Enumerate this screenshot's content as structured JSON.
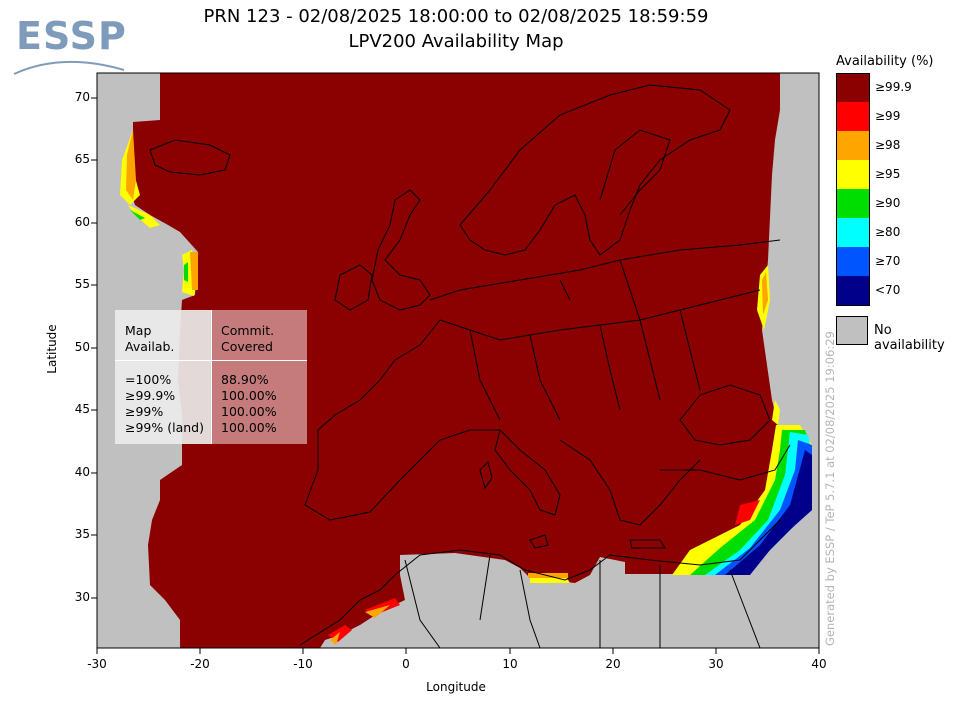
{
  "logo": {
    "text": "ESSP"
  },
  "title": {
    "line1": "PRN 123 - 02/08/2025 18:00:00 to 02/08/2025 18:59:59",
    "line2": "LPV200 Availability Map"
  },
  "axes": {
    "xlabel": "Longitude",
    "ylabel": "Latitude",
    "xticks": [
      "-30",
      "-20",
      "-10",
      "0",
      "10",
      "20",
      "30",
      "40"
    ],
    "yticks": [
      "70",
      "65",
      "60",
      "55",
      "50",
      "45",
      "40",
      "35",
      "30"
    ],
    "xlim": [
      -30,
      40
    ],
    "ylim": [
      26,
      72
    ]
  },
  "legend": {
    "title": "Availability (%)",
    "items": [
      {
        "label": "≥99.9",
        "color": "#8b0000"
      },
      {
        "label": "≥99",
        "color": "#ff0000"
      },
      {
        "label": "≥98",
        "color": "#ffa500"
      },
      {
        "label": "≥95",
        "color": "#ffff00"
      },
      {
        "label": "≥90",
        "color": "#00dd00"
      },
      {
        "label": "≥80",
        "color": "#00ffff"
      },
      {
        "label": "≥70",
        "color": "#0055ff"
      },
      {
        "label": "<70",
        "color": "#00008b"
      }
    ],
    "no_availability": {
      "label": "No availability",
      "color": "#c0c0c0"
    }
  },
  "stats_table": {
    "header_left": "Map\nAvailab.",
    "header_right": "Commit.\nCovered",
    "rows_left": "=100%\n≥99.9%\n≥99%\n≥99% (land)",
    "rows_right": "88.90%\n100.00%\n100.00%\n100.00%"
  },
  "watermark": "Generated by ESSP / TeP 5.7.1 at 02/08/2025 19:06:29"
}
